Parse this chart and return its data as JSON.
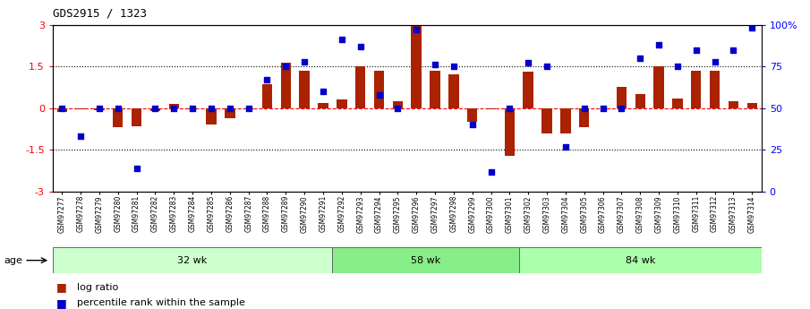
{
  "title": "GDS2915 / 1323",
  "samples": [
    "GSM97277",
    "GSM97278",
    "GSM97279",
    "GSM97280",
    "GSM97281",
    "GSM97282",
    "GSM97283",
    "GSM97284",
    "GSM97285",
    "GSM97286",
    "GSM97287",
    "GSM97288",
    "GSM97289",
    "GSM97290",
    "GSM97291",
    "GSM97292",
    "GSM97293",
    "GSM97294",
    "GSM97295",
    "GSM97296",
    "GSM97297",
    "GSM97298",
    "GSM97299",
    "GSM97300",
    "GSM97301",
    "GSM97302",
    "GSM97303",
    "GSM97304",
    "GSM97305",
    "GSM97306",
    "GSM97307",
    "GSM97308",
    "GSM97309",
    "GSM97310",
    "GSM97311",
    "GSM97312",
    "GSM97313",
    "GSM97314"
  ],
  "log_ratio": [
    -0.15,
    -0.05,
    -0.08,
    -0.7,
    -0.65,
    -0.1,
    0.15,
    -0.05,
    -0.6,
    -0.35,
    -0.05,
    0.85,
    1.65,
    1.35,
    0.2,
    0.3,
    1.5,
    1.35,
    0.25,
    3.0,
    1.35,
    1.2,
    -0.5,
    -0.05,
    -1.7,
    1.3,
    -0.9,
    -0.9,
    -0.7,
    0.0,
    0.75,
    0.5,
    1.5,
    0.35,
    1.35,
    1.35,
    0.25,
    0.2
  ],
  "percentile": [
    50,
    33,
    50,
    50,
    14,
    50,
    50,
    50,
    50,
    50,
    50,
    67,
    75,
    78,
    60,
    91,
    87,
    58,
    50,
    97,
    76,
    75,
    40,
    12,
    50,
    77,
    75,
    27,
    50,
    50,
    50,
    80,
    88,
    75,
    85,
    78,
    85,
    98
  ],
  "groups": [
    {
      "label": "32 wk",
      "start": 0,
      "end": 15,
      "color": "#ccffcc"
    },
    {
      "label": "58 wk",
      "start": 15,
      "end": 25,
      "color": "#88ee88"
    },
    {
      "label": "84 wk",
      "start": 25,
      "end": 38,
      "color": "#aaffaa"
    }
  ],
  "ylim": [
    -3,
    3
  ],
  "yticks_left": [
    -3,
    -1.5,
    0,
    1.5,
    3
  ],
  "yticks_right_vals": [
    0,
    25,
    50,
    75,
    100
  ],
  "hlines_dotted": [
    -1.5,
    1.5
  ],
  "hline_red": 0,
  "bar_color": "#aa2200",
  "dot_color": "#0000cc",
  "bar_width": 0.55,
  "dot_size": 18,
  "age_label": "age",
  "legend_items": [
    {
      "label": "log ratio",
      "color": "#aa2200"
    },
    {
      "label": "percentile rank within the sample",
      "color": "#0000cc"
    }
  ],
  "title_fontsize": 9,
  "tick_label_fontsize": 5.5,
  "group_label_fontsize": 8,
  "legend_fontsize": 8
}
